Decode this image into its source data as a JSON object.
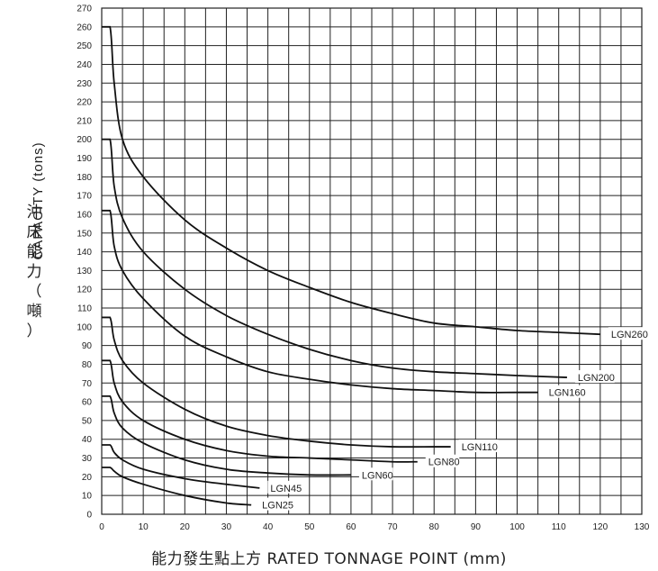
{
  "chart_data": {
    "type": "line",
    "xlabel": "能力發生點上方 RATED TONNAGE POINT (mm)",
    "ylabel_en": "CAPACITY (tons)",
    "ylabel_zh": "沖床能力（噸）",
    "xlim": [
      0,
      130
    ],
    "ylim": [
      0,
      270
    ],
    "x_ticks": [
      0,
      10,
      20,
      30,
      40,
      50,
      60,
      70,
      80,
      90,
      100,
      110,
      120,
      130
    ],
    "y_ticks": [
      0,
      10,
      20,
      30,
      40,
      50,
      60,
      70,
      80,
      90,
      100,
      110,
      120,
      130,
      140,
      150,
      160,
      170,
      180,
      190,
      200,
      210,
      220,
      230,
      240,
      250,
      260,
      270
    ],
    "grid": true,
    "series": [
      {
        "name": "LGN260",
        "x": [
          0,
          2,
          3,
          5,
          10,
          20,
          30,
          40,
          50,
          60,
          70,
          80,
          90,
          100,
          110,
          120
        ],
        "y": [
          260,
          260,
          230,
          200,
          180,
          157,
          142,
          130,
          121,
          113,
          107,
          102,
          100,
          98,
          97,
          96
        ]
      },
      {
        "name": "LGN200",
        "x": [
          0,
          2,
          3,
          5,
          10,
          20,
          30,
          40,
          50,
          60,
          70,
          80,
          90,
          100,
          112
        ],
        "y": [
          200,
          200,
          175,
          158,
          140,
          120,
          106,
          96,
          88,
          82,
          78,
          76,
          75,
          74,
          73
        ]
      },
      {
        "name": "LGN160",
        "x": [
          0,
          2,
          3,
          5,
          10,
          20,
          30,
          40,
          50,
          60,
          70,
          80,
          90,
          100,
          105
        ],
        "y": [
          162,
          162,
          143,
          130,
          115,
          95,
          84,
          76,
          72,
          69,
          67,
          66,
          65,
          65,
          65
        ]
      },
      {
        "name": "LGN110",
        "x": [
          0,
          2,
          3,
          5,
          10,
          20,
          30,
          40,
          50,
          60,
          70,
          80,
          84
        ],
        "y": [
          105,
          105,
          93,
          82,
          70,
          56,
          47,
          42,
          39,
          37,
          36,
          36,
          36
        ]
      },
      {
        "name": "LGN80",
        "x": [
          0,
          2,
          3,
          5,
          10,
          20,
          30,
          40,
          50,
          60,
          70,
          76
        ],
        "y": [
          82,
          82,
          70,
          60,
          50,
          40,
          34,
          31,
          30,
          29,
          28,
          28
        ]
      },
      {
        "name": "LGN60",
        "x": [
          0,
          2,
          3,
          5,
          10,
          20,
          30,
          40,
          50,
          60
        ],
        "y": [
          63,
          63,
          54,
          46,
          38,
          29,
          24,
          22,
          21,
          21
        ]
      },
      {
        "name": "LGN45",
        "x": [
          0,
          2,
          3,
          5,
          10,
          20,
          30,
          38
        ],
        "y": [
          37,
          37,
          33,
          29,
          24,
          19,
          16,
          14
        ]
      },
      {
        "name": "LGN25",
        "x": [
          0,
          2,
          3,
          5,
          10,
          20,
          30,
          36
        ],
        "y": [
          25,
          25,
          23,
          20,
          16,
          10,
          6,
          5
        ]
      }
    ]
  }
}
